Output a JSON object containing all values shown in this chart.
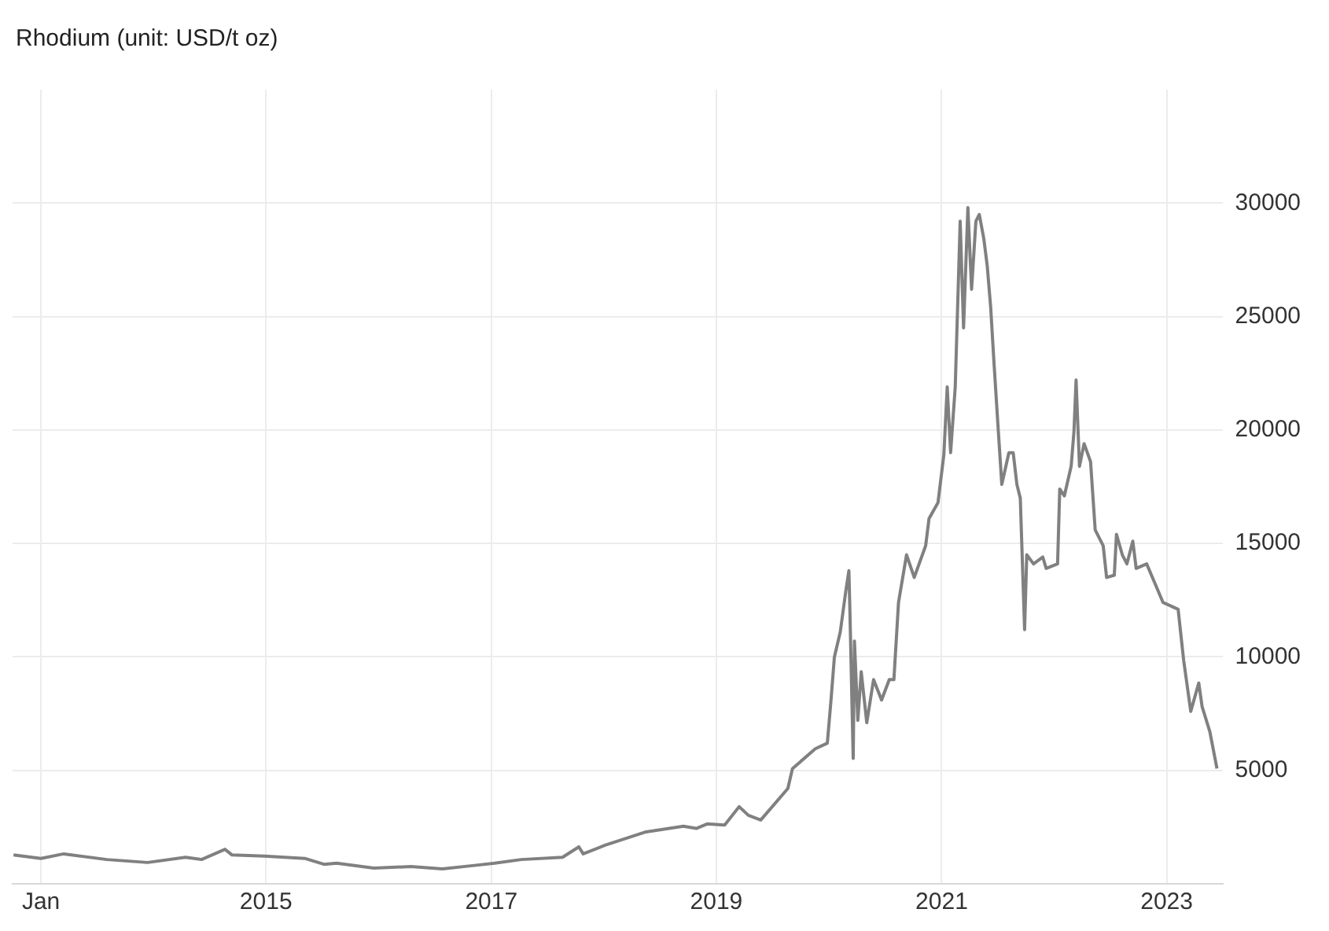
{
  "chart_data": {
    "type": "line",
    "title": "Rhodium (unit: USD/t oz)",
    "x": [
      "2012-10-04",
      "2013-01-01",
      "2013-03-16",
      "2013-08-03",
      "2013-12-13",
      "2014-04-15",
      "2014-06-06",
      "2014-08-21",
      "2014-09-13",
      "2014-12-27",
      "2015-05-07",
      "2015-07-08",
      "2015-08-18",
      "2015-12-17",
      "2016-04-15",
      "2016-07-26",
      "2016-11-07",
      "2017-01-12",
      "2017-04-08",
      "2017-08-20",
      "2017-10-12",
      "2017-10-26",
      "2018-01-05",
      "2018-05-18",
      "2018-09-16",
      "2018-10-28",
      "2018-12-02",
      "2019-01-28",
      "2019-03-16",
      "2019-04-15",
      "2019-05-25",
      "2019-08-21",
      "2019-09-05",
      "2019-11-18",
      "2019-12-27",
      "2020-01-08",
      "2020-01-19",
      "2020-02-07",
      "2020-02-25",
      "2020-03-06",
      "2020-03-09",
      "2020-03-20",
      "2020-03-24",
      "2020-04-04",
      "2020-04-15",
      "2020-05-03",
      "2020-05-25",
      "2020-06-20",
      "2020-07-15",
      "2020-07-30",
      "2020-08-14",
      "2020-09-09",
      "2020-10-04",
      "2020-11-10",
      "2020-11-21",
      "2020-12-20",
      "2021-01-08",
      "2021-01-19",
      "2021-01-30",
      "2021-02-14",
      "2021-03-02",
      "2021-03-13",
      "2021-03-27",
      "2021-04-08",
      "2021-04-22",
      "2021-05-03",
      "2021-05-18",
      "2021-05-29",
      "2021-06-09",
      "2021-06-20",
      "2021-07-04",
      "2021-07-15",
      "2021-08-07",
      "2021-08-21",
      "2021-09-02",
      "2021-09-13",
      "2021-09-27",
      "2021-10-04",
      "2021-10-26",
      "2021-11-25",
      "2021-12-06",
      "2022-01-12",
      "2022-01-19",
      "2022-02-03",
      "2022-02-25",
      "2022-03-06",
      "2022-03-13",
      "2022-03-24",
      "2022-04-08",
      "2022-04-29",
      "2022-05-14",
      "2022-06-09",
      "2022-06-20",
      "2022-07-15",
      "2022-07-22",
      "2022-08-10",
      "2022-08-25",
      "2022-09-13",
      "2022-09-24",
      "2022-10-28",
      "2022-11-25",
      "2022-12-20",
      "2023-02-07",
      "2023-02-25",
      "2023-03-20",
      "2023-04-15",
      "2023-04-26",
      "2023-05-21",
      "2023-06-13"
    ],
    "series": [
      {
        "color": "#808080",
        "values": [
          1270,
          1120,
          1320,
          1070,
          940,
          1170,
          1070,
          1520,
          1270,
          1220,
          1120,
          860,
          910,
          690,
          760,
          660,
          810,
          910,
          1070,
          1170,
          1630,
          1320,
          1700,
          2290,
          2540,
          2440,
          2640,
          2590,
          3400,
          3020,
          2810,
          4200,
          5080,
          5950,
          6200,
          8100,
          10000,
          11100,
          12900,
          13800,
          12200,
          5530,
          10700,
          7200,
          9350,
          7100,
          9000,
          8100,
          9000,
          9000,
          12400,
          14500,
          13500,
          14900,
          16100,
          16800,
          18900,
          21900,
          19000,
          21900,
          29200,
          24500,
          29800,
          26200,
          29200,
          29500,
          28400,
          27200,
          25400,
          22900,
          19900,
          17600,
          19000,
          19000,
          17600,
          17000,
          11200,
          14500,
          14100,
          14400,
          13900,
          14100,
          17400,
          17100,
          18400,
          19900,
          22200,
          18400,
          19400,
          18600,
          15600,
          14900,
          13500,
          13600,
          15400,
          14500,
          14100,
          15100,
          13900,
          14100,
          13200,
          12400,
          12100,
          9850,
          7600,
          8850,
          7800,
          6700,
          5080
        ]
      }
    ],
    "xlim": [
      "2012-10-01",
      "2023-07-01"
    ],
    "xticks": [
      {
        "value": "2013-01-01",
        "label": "Jan"
      },
      {
        "value": "2015-01-01",
        "label": "2015"
      },
      {
        "value": "2017-01-01",
        "label": "2017"
      },
      {
        "value": "2019-01-01",
        "label": "2019"
      },
      {
        "value": "2021-01-01",
        "label": "2021"
      },
      {
        "value": "2023-01-01",
        "label": "2023"
      }
    ],
    "ylim": [
      0,
      35000
    ],
    "yticks": [
      5000,
      10000,
      15000,
      20000,
      25000,
      30000
    ],
    "grid": true,
    "legend": false,
    "marker": "none",
    "line_style": "solid"
  }
}
